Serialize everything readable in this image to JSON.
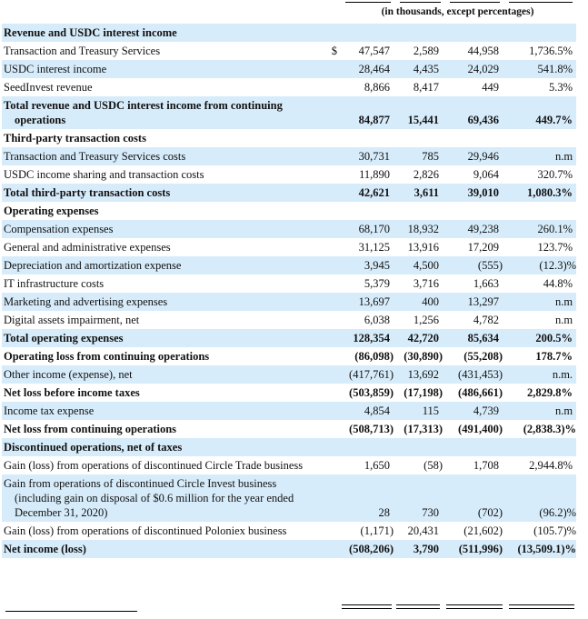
{
  "header": {
    "subtitle": "(in thousands, except percentages)"
  },
  "table": {
    "rows": [
      {
        "label": "Revenue and USDC interest income",
        "bold": true
      },
      {
        "label": "Transaction and Treasury Services",
        "prefix": "$",
        "values": [
          "47,547",
          "2,589",
          "44,958",
          "1,736.5%"
        ]
      },
      {
        "label": "USDC interest income",
        "values": [
          "28,464",
          "4,435",
          "24,029",
          "541.8%"
        ]
      },
      {
        "label": "SeedInvest revenue",
        "values": [
          "8,866",
          "8,417",
          "449",
          "5.3%"
        ]
      },
      {
        "label": "Total revenue and USDC interest income from continuing operations",
        "bold": true,
        "values": [
          "84,877",
          "15,441",
          "69,436",
          "449.7%"
        ]
      },
      {
        "label": "Third-party transaction costs",
        "bold": true
      },
      {
        "label": "Transaction and Treasury Services costs",
        "values": [
          "30,731",
          "785",
          "29,946",
          "n.m"
        ]
      },
      {
        "label": "USDC income sharing and transaction costs",
        "values": [
          "11,890",
          "2,826",
          "9,064",
          "320.7%"
        ]
      },
      {
        "label": "Total third-party transaction costs",
        "bold": true,
        "values": [
          "42,621",
          "3,611",
          "39,010",
          "1,080.3%"
        ]
      },
      {
        "label": "Operating expenses",
        "bold": true
      },
      {
        "label": "Compensation expenses",
        "values": [
          "68,170",
          "18,932",
          "49,238",
          "260.1%"
        ]
      },
      {
        "label": "General and administrative expenses",
        "values": [
          "31,125",
          "13,916",
          "17,209",
          "123.7%"
        ]
      },
      {
        "label": "Depreciation and amortization expense",
        "values": [
          "3,945",
          "4,500",
          "(555)",
          "(12.3)%"
        ]
      },
      {
        "label": "IT infrastructure costs",
        "values": [
          "5,379",
          "3,716",
          "1,663",
          "44.8%"
        ]
      },
      {
        "label": "Marketing and advertising expenses",
        "values": [
          "13,697",
          "400",
          "13,297",
          "n.m"
        ]
      },
      {
        "label": "Digital assets impairment, net",
        "values": [
          "6,038",
          "1,256",
          "4,782",
          "n.m"
        ]
      },
      {
        "label": "Total operating expenses",
        "bold": true,
        "values": [
          "128,354",
          "42,720",
          "85,634",
          "200.5%"
        ]
      },
      {
        "label": "Operating loss from continuing operations",
        "bold": true,
        "values": [
          "(86,098)",
          "(30,890)",
          "(55,208)",
          "178.7%"
        ]
      },
      {
        "label": "Other income (expense), net",
        "values": [
          "(417,761)",
          "13,692",
          "(431,453)",
          "n.m."
        ]
      },
      {
        "label": "Net loss before income taxes",
        "bold": true,
        "values": [
          "(503,859)",
          "(17,198)",
          "(486,661)",
          "2,829.8%"
        ]
      },
      {
        "label": "Income tax expense",
        "values": [
          "4,854",
          "115",
          "4,739",
          "n.m"
        ]
      },
      {
        "label": "Net loss from continuing operations",
        "bold": true,
        "values": [
          "(508,713)",
          "(17,313)",
          "(491,400)",
          "(2,838.3)%"
        ]
      },
      {
        "label": "Discontinued operations, net of taxes",
        "bold": true
      },
      {
        "label": "Gain (loss) from operations of discontinued Circle Trade business",
        "values": [
          "1,650",
          "(58)",
          "1,708",
          "2,944.8%"
        ]
      },
      {
        "label": "Gain from operations of discontinued Circle Invest business (including gain on disposal of $0.6 million for the year ended December 31, 2020)",
        "values": [
          "28",
          "730",
          "(702)",
          "(96.2)%"
        ]
      },
      {
        "label": "Gain (loss) from operations of discontinued Poloniex business",
        "values": [
          "(1,171)",
          "20,431",
          "(21,602)",
          "(105.7)%"
        ]
      },
      {
        "label": "Net income (loss)",
        "bold": true,
        "values": [
          "(508,206)",
          "3,790",
          "(511,996)",
          "(13,509.1)%"
        ]
      }
    ]
  }
}
